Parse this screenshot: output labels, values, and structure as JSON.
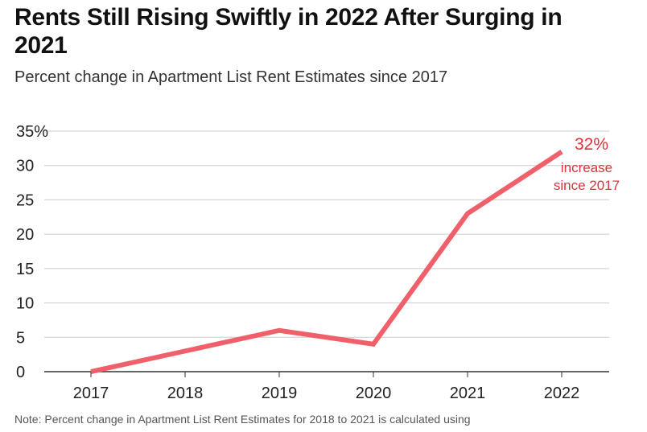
{
  "title": "Rents Still Rising Swiftly in 2022 After Surging in 2021",
  "subtitle": "Percent change in Apartment List Rent Estimates since 2017",
  "note": "Note: Percent change in Apartment List Rent Estimates for 2018 to 2021 is calculated using",
  "colors": {
    "line": "#f0606a",
    "annotation": "#e0313b",
    "grid": "#cccccc",
    "axis": "#333333"
  },
  "chart_data": {
    "type": "line",
    "x": [
      "2017",
      "2018",
      "2019",
      "2020",
      "2021",
      "2022"
    ],
    "series": [
      {
        "values": [
          0,
          3,
          6,
          4,
          23,
          32
        ]
      }
    ],
    "ylim": [
      0,
      35
    ],
    "yticks": [
      0,
      5,
      10,
      15,
      20,
      25,
      30,
      35
    ],
    "ytick_labels": [
      "0",
      "5",
      "10",
      "15",
      "20",
      "25",
      "30",
      "35%"
    ],
    "grid": true,
    "annotation": {
      "value": "32%",
      "line1": "increase",
      "line2": "since 2017"
    }
  }
}
